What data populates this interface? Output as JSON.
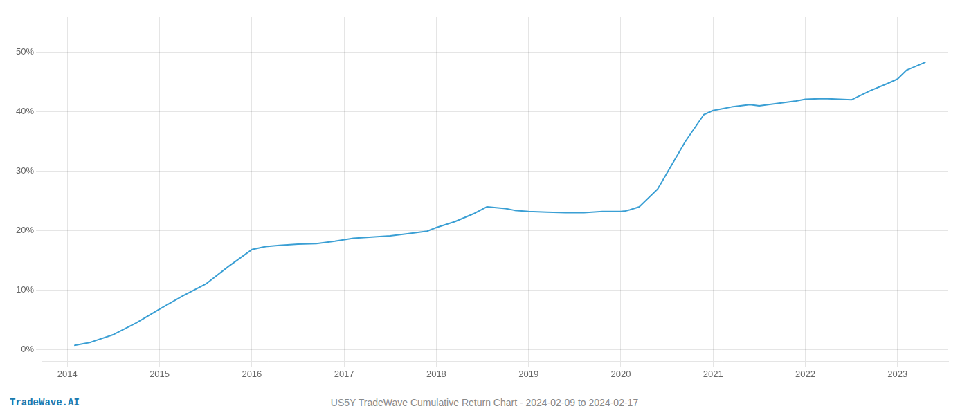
{
  "chart_data": {
    "type": "line",
    "title": "US5Y TradeWave Cumulative Return Chart - 2024-02-09 to 2024-02-17",
    "annotations": [
      "TradeWave.AI"
    ],
    "x": [
      2014.08,
      2014.25,
      2014.5,
      2014.75,
      2015.0,
      2015.25,
      2015.5,
      2015.75,
      2016.0,
      2016.15,
      2016.3,
      2016.5,
      2016.7,
      2016.9,
      2017.1,
      2017.3,
      2017.5,
      2017.7,
      2017.9,
      2018.0,
      2018.2,
      2018.4,
      2018.55,
      2018.75,
      2018.85,
      2019.0,
      2019.2,
      2019.4,
      2019.6,
      2019.8,
      2020.0,
      2020.05,
      2020.1,
      2020.2,
      2020.4,
      2020.7,
      2020.9,
      2021.0,
      2021.1,
      2021.2,
      2021.4,
      2021.5,
      2021.7,
      2021.9,
      2022.0,
      2022.2,
      2022.5,
      2022.7,
      2022.9,
      2023.0,
      2023.1,
      2023.3
    ],
    "values": [
      0.7,
      1.2,
      2.5,
      4.5,
      6.8,
      9.0,
      11.0,
      14.0,
      16.8,
      17.3,
      17.5,
      17.7,
      17.8,
      18.2,
      18.7,
      18.9,
      19.1,
      19.5,
      19.9,
      20.5,
      21.5,
      22.8,
      24.0,
      23.7,
      23.4,
      23.2,
      23.1,
      23.0,
      23.0,
      23.2,
      23.2,
      23.3,
      23.5,
      24.0,
      27.0,
      35.0,
      39.5,
      40.2,
      40.5,
      40.8,
      41.2,
      41.0,
      41.4,
      41.8,
      42.1,
      42.2,
      42.0,
      43.5,
      44.8,
      45.5,
      47.0,
      48.3
    ],
    "color": "#3a9fd4",
    "xlim": [
      2013.72,
      2023.55
    ],
    "ylim": [
      -2,
      56
    ],
    "xticks": [
      2014,
      2015,
      2016,
      2017,
      2018,
      2019,
      2020,
      2021,
      2022,
      2023
    ],
    "yticks": [
      {
        "value": 0,
        "label": "0%"
      },
      {
        "value": 10,
        "label": "10%"
      },
      {
        "value": 20,
        "label": "20%"
      },
      {
        "value": 30,
        "label": "30%"
      },
      {
        "value": 40,
        "label": "40%"
      },
      {
        "value": 50,
        "label": "50%"
      }
    ],
    "grid": true
  }
}
